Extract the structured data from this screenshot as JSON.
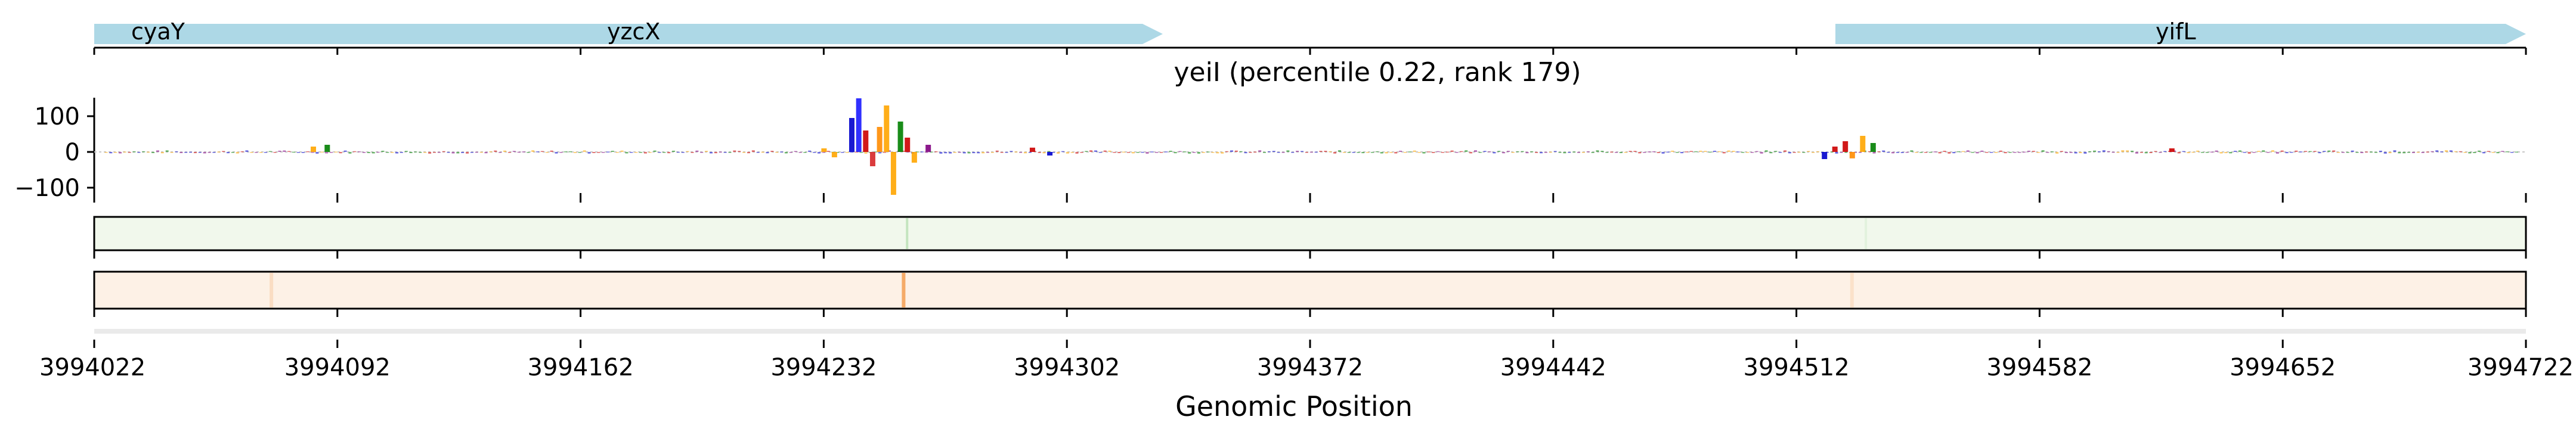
{
  "chart_data": {
    "type": "line",
    "title": "yeiI (percentile 0.22, rank 179)",
    "xlabel": "Genomic Position",
    "ylabel": "",
    "xlim": [
      3994022,
      3994722
    ],
    "ylim": [
      -130,
      155
    ],
    "y_ticks": [
      100,
      0,
      -100
    ],
    "y_tick_labels": [
      "100",
      "0",
      "−100"
    ],
    "x_ticks": [
      3994022,
      3994092,
      3994162,
      3994232,
      3994302,
      3994372,
      3994442,
      3994512,
      3994582,
      3994652,
      3994722
    ],
    "x_tick_labels": [
      "3994022",
      "3994092",
      "3994162",
      "3994232",
      "3994302",
      "3994372",
      "3994442",
      "3994512",
      "3994582",
      "3994652",
      "3994722"
    ],
    "genes": [
      {
        "name": "cyaY",
        "start": 3994022,
        "end": 3994022,
        "strand": "+",
        "color": "#add8e6"
      },
      {
        "name": "yzcX",
        "start": 3994022,
        "end": 3994334,
        "strand": "+",
        "color": "#add8e6"
      },
      {
        "name": "yifL",
        "start": 3994525,
        "end": 3994722,
        "strand": "+",
        "color": "#add8e6"
      }
    ],
    "gene_label_positions": [
      3994041,
      3994183,
      3994634
    ],
    "peaks": [
      {
        "x": 3994240,
        "y": 95,
        "color": "#0000cc"
      },
      {
        "x": 3994242,
        "y": 150,
        "color": "#1a1aff"
      },
      {
        "x": 3994244,
        "y": 60,
        "color": "#cc0000"
      },
      {
        "x": 3994246,
        "y": -40,
        "color": "#d62728"
      },
      {
        "x": 3994248,
        "y": 70,
        "color": "#ff8c00"
      },
      {
        "x": 3994250,
        "y": 130,
        "color": "#ffa500"
      },
      {
        "x": 3994252,
        "y": -120,
        "color": "#ffa500"
      },
      {
        "x": 3994254,
        "y": 85,
        "color": "#008000"
      },
      {
        "x": 3994256,
        "y": 40,
        "color": "#cc0000"
      },
      {
        "x": 3994258,
        "y": -30,
        "color": "#ffa500"
      },
      {
        "x": 3994262,
        "y": 20,
        "color": "#800080"
      },
      {
        "x": 3994232,
        "y": 10,
        "color": "#ffa500"
      },
      {
        "x": 3994235,
        "y": -15,
        "color": "#ffa500"
      },
      {
        "x": 3994520,
        "y": -20,
        "color": "#0000cc"
      },
      {
        "x": 3994523,
        "y": 15,
        "color": "#cc0000"
      },
      {
        "x": 3994526,
        "y": 30,
        "color": "#cc0000"
      },
      {
        "x": 3994528,
        "y": -18,
        "color": "#ff8c00"
      },
      {
        "x": 3994531,
        "y": 45,
        "color": "#ffa500"
      },
      {
        "x": 3994534,
        "y": 25,
        "color": "#008000"
      },
      {
        "x": 3994085,
        "y": 15,
        "color": "#ffa500"
      },
      {
        "x": 3994089,
        "y": 20,
        "color": "#008000"
      },
      {
        "x": 3994292,
        "y": 12,
        "color": "#cc0000"
      },
      {
        "x": 3994297,
        "y": -10,
        "color": "#0000cc"
      },
      {
        "x": 3994620,
        "y": 10,
        "color": "#cc0000"
      }
    ],
    "heat_highlights": [
      {
        "track": "green",
        "x": 3994256,
        "intensity": 0.45
      },
      {
        "track": "green",
        "x": 3994532,
        "intensity": 0.15
      },
      {
        "track": "orange",
        "x": 3994255,
        "intensity": 0.9
      },
      {
        "track": "orange",
        "x": 3994073,
        "intensity": 0.25
      },
      {
        "track": "orange",
        "x": 3994528,
        "intensity": 0.2
      }
    ],
    "grid": false,
    "legend": "none",
    "colors": {
      "gene": "#add8e6",
      "green_track": "#f1f8ec",
      "green_track_hi": "#8fcf8a",
      "orange_track": "#fdf1e6",
      "orange_track_hi": "#f4a35a",
      "A": "#008000",
      "C": "#0000cc",
      "G": "#ffa500",
      "T": "#cc0000"
    }
  }
}
